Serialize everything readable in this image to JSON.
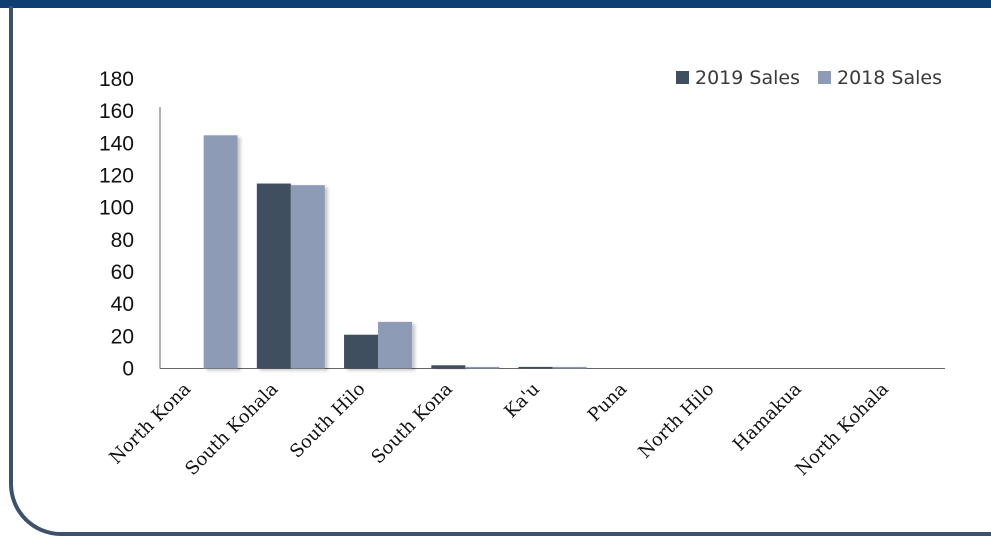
{
  "colors": {
    "frame": "#3d5168",
    "header": "#0d3f73"
  },
  "chart_data": {
    "type": "bar",
    "title": "",
    "xlabel": "",
    "ylabel": "",
    "categories": [
      "North Kona",
      "South Kohala",
      "South Hilo",
      "South Kona",
      "Ka'u",
      "Puna",
      "North Hilo",
      "Hamakua",
      "North Kohala"
    ],
    "series": [
      {
        "name": "2019 Sales",
        "color": "#3f4f5f",
        "values": [
          0,
          115,
          21,
          2,
          1,
          0,
          0,
          0,
          0
        ]
      },
      {
        "name": "2018 Sales",
        "color": "#8e9bb7",
        "values": [
          145,
          114,
          29,
          1,
          1,
          0,
          0,
          0,
          0
        ]
      }
    ],
    "ylim": [
      0,
      180
    ],
    "yticks": [
      "0",
      "20",
      "40",
      "60",
      "80",
      "100",
      "120",
      "140",
      "160",
      "180"
    ],
    "legend_position": "top-right",
    "grid": false
  }
}
